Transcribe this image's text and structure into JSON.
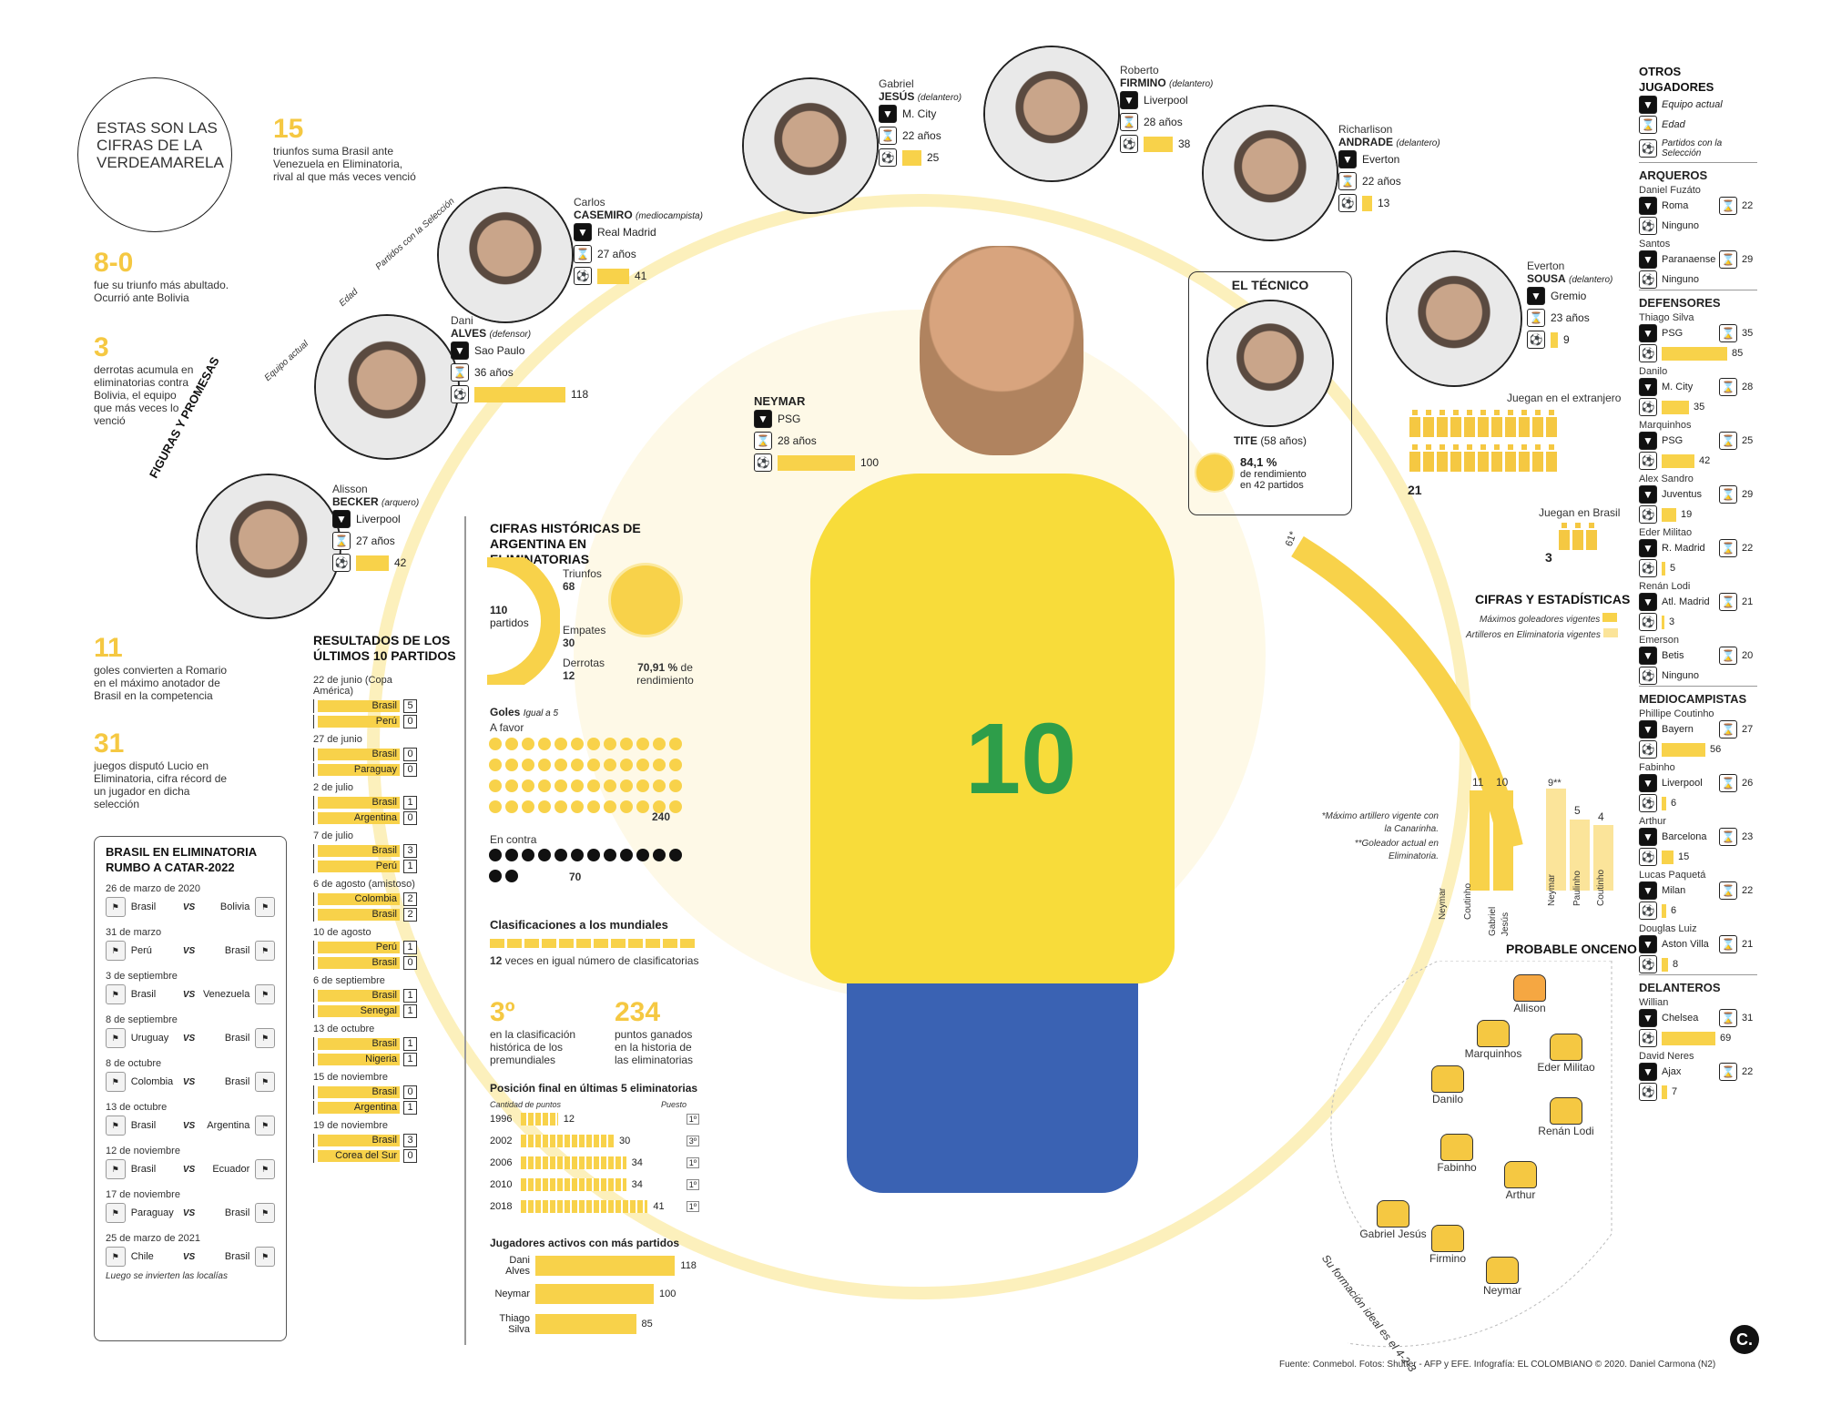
{
  "title": {
    "line1": "ESTAS SON LAS",
    "line2": "CIFRAS DE LA",
    "line3": "VERDEAMARELA"
  },
  "facts": [
    {
      "n": "15",
      "t": "triunfos suma Brasil ante Venezuela en Eliminatoria, rival al que más veces venció"
    },
    {
      "n": "8-0",
      "t": "fue su triunfo más abultado. Ocurrió ante Bolivia"
    },
    {
      "n": "3",
      "t": "derrotas acumula en eliminatorias contra Bolivia, el equipo que más veces lo venció"
    },
    {
      "n": "11",
      "t": "goles convierten a Romario en el máximo anotador de Brasil en la competencia"
    },
    {
      "n": "31",
      "t": "juegos disputó Lucio en Eliminatoria, cifra récord de un jugador en dicha selección"
    }
  ],
  "arc_labels": {
    "section": "FIGURAS Y PROMESAS",
    "team": "Equipo actual",
    "age": "Edad",
    "games": "Partidos con la Selección"
  },
  "players": [
    {
      "first": "Alisson",
      "last": "BECKER",
      "role": "(arquero)",
      "team": "Liverpool",
      "age": "27 años",
      "games": "42"
    },
    {
      "first": "Dani",
      "last": "ALVES",
      "role": "(defensor)",
      "team": "Sao Paulo",
      "age": "36 años",
      "games": "118"
    },
    {
      "first": "Carlos",
      "last": "CASEMIRO",
      "role": "(mediocampista)",
      "team": "Real Madrid",
      "age": "27 años",
      "games": "41"
    },
    {
      "first": "Gabriel",
      "last": "JESÚS",
      "role": "(delantero)",
      "team": "M. City",
      "age": "22 años",
      "games": "25"
    },
    {
      "first": "Roberto",
      "last": "FIRMINO",
      "role": "(delantero)",
      "team": "Liverpool",
      "age": "28 años",
      "games": "38"
    },
    {
      "first": "Richarlison",
      "last": "ANDRADE",
      "role": "(delantero)",
      "team": "Everton",
      "age": "22 años",
      "games": "13"
    },
    {
      "first": "Everton",
      "last": "SOUSA",
      "role": "(delantero)",
      "team": "Gremio",
      "age": "23 años",
      "games": "9"
    }
  ],
  "neymar": {
    "name": "NEYMAR",
    "team": "PSG",
    "age": "28 años",
    "games": "100"
  },
  "coach": {
    "title": "EL TÉCNICO",
    "name": "TITE",
    "age": "(58 años)",
    "pct": "84,1 %",
    "t1": "de rendimiento",
    "t2": "en 42 partidos"
  },
  "abroad": {
    "t1": "Juegan en el extranjero",
    "n1": "21",
    "t2": "Juegan en Brasil",
    "n2": "3"
  },
  "stats": {
    "title": "CIFRAS Y ESTADÍSTICAS",
    "leg1": "Máximos goleadores vigentes",
    "leg2": "Artilleros en Eliminatoria vigentes",
    "top1": "61*",
    "top2": "9**",
    "note1": "*Máximo artillero vigente con la Canarinha.",
    "note2": "**Goleador actual en Eliminatoria.",
    "names1": [
      "Neymar",
      "Coutinho",
      "Gabriel Jesús"
    ],
    "vals1": [
      "11",
      "10"
    ],
    "names2": [
      "Neymar",
      "Paulinho",
      "Coutinho"
    ],
    "vals2": [
      "5",
      "4"
    ]
  },
  "onceno": {
    "title": "PROBABLE ONCENO",
    "formation": "Su formación ideal es el 4-2-3",
    "players": [
      "Allison",
      "Marquinhos",
      "Eder Militao",
      "Danilo",
      "Renán Lodi",
      "Fabinho",
      "Arthur",
      "Gabriel Jesús",
      "Firmino",
      "Neymar"
    ]
  },
  "argentina": {
    "title": "CIFRAS HISTÓRICAS DE ARGENTINA EN ELIMINATORIAS",
    "partidos": "110",
    "partidos_l": "partidos",
    "tri_l": "Triunfos",
    "tri": "68",
    "emp_l": "Empates",
    "emp": "30",
    "der_l": "Derrotas",
    "der": "12",
    "pct": "70,91 %",
    "pct_l": "de",
    "pct_l2": "rendimiento",
    "goles": "Goles",
    "igual": "Igual a 5",
    "favor": "A favor",
    "favor_n": "240",
    "contra": "En contra",
    "contra_n": "70"
  },
  "clasif": {
    "title": "Clasificaciones a los mundiales",
    "n": "12",
    "t": "veces en igual número de clasificatorias"
  },
  "rank": [
    {
      "n": "3º",
      "t": "en la clasificación histórica de los premundiales"
    },
    {
      "n": "234",
      "t": "puntos ganados en la historia de las eliminatorias"
    }
  ],
  "pos": {
    "title": "Posición final en últimas 5 eliminatorias",
    "c1": "Cantidad de puntos",
    "c2": "Puesto",
    "rows": [
      {
        "y": "1996",
        "p": "12",
        "r": "1º"
      },
      {
        "y": "2002",
        "p": "30",
        "r": "3º"
      },
      {
        "y": "2006",
        "p": "34",
        "r": "1º"
      },
      {
        "y": "2010",
        "p": "34",
        "r": "1º"
      },
      {
        "y": "2018",
        "p": "41",
        "r": "1º"
      }
    ]
  },
  "active": {
    "title": "Jugadores activos con más partidos",
    "rows": [
      {
        "n": "Dani Alves",
        "v": "118"
      },
      {
        "n": "Neymar",
        "v": "100"
      },
      {
        "n": "Thiago Silva",
        "v": "85"
      }
    ]
  },
  "results": {
    "title": "RESULTADOS DE LOS ÚLTIMOS 10 PARTIDOS",
    "games": [
      {
        "d": "22 de junio (Copa América)",
        "a": "Brasil",
        "as": "5",
        "b": "Perú",
        "bs": "0"
      },
      {
        "d": "27 de junio",
        "a": "Brasil",
        "as": "0",
        "b": "Paraguay",
        "bs": "0"
      },
      {
        "d": "2 de julio",
        "a": "Brasil",
        "as": "1",
        "b": "Argentina",
        "bs": "0"
      },
      {
        "d": "7 de julio",
        "a": "Brasil",
        "as": "3",
        "b": "Perú",
        "bs": "1"
      },
      {
        "d": "6 de agosto (amistoso)",
        "a": "Colombia",
        "as": "2",
        "b": "Brasil",
        "bs": "2"
      },
      {
        "d": "10 de agosto",
        "a": "Perú",
        "as": "1",
        "b": "Brasil",
        "bs": "0"
      },
      {
        "d": "6 de septiembre",
        "a": "Brasil",
        "as": "1",
        "b": "Senegal",
        "bs": "1"
      },
      {
        "d": "13 de octubre",
        "a": "Brasil",
        "as": "1",
        "b": "Nigeria",
        "bs": "1"
      },
      {
        "d": "15 de noviembre",
        "a": "Brasil",
        "as": "0",
        "b": "Argentina",
        "bs": "1"
      },
      {
        "d": "19 de noviembre",
        "a": "Brasil",
        "as": "3",
        "b": "Corea del Sur",
        "bs": "0"
      }
    ]
  },
  "qatar": {
    "title": "BRASIL EN ELIMINATORIA RUMBO A CATAR-2022",
    "vs": "VS",
    "note": "Luego se invierten las localías",
    "games": [
      {
        "d": "26 de marzo de 2020",
        "a": "Brasil",
        "b": "Bolivia"
      },
      {
        "d": "31 de marzo",
        "a": "Perú",
        "b": "Brasil"
      },
      {
        "d": "3 de septiembre",
        "a": "Brasil",
        "b": "Venezuela"
      },
      {
        "d": "8 de septiembre",
        "a": "Uruguay",
        "b": "Brasil"
      },
      {
        "d": "8 de octubre",
        "a": "Colombia",
        "b": "Brasil"
      },
      {
        "d": "13 de octubre",
        "a": "Brasil",
        "b": "Argentina"
      },
      {
        "d": "12 de noviembre",
        "a": "Brasil",
        "b": "Ecuador"
      },
      {
        "d": "17 de noviembre",
        "a": "Paraguay",
        "b": "Brasil"
      },
      {
        "d": "25 de marzo de 2021",
        "a": "Chile",
        "b": "Brasil"
      }
    ]
  },
  "others": {
    "title": "OTROS JUGADORES",
    "l1": "Equipo actual",
    "l2": "Edad",
    "l3": "Partidos con la Selección",
    "groups": [
      {
        "g": "Arqueros",
        "p": [
          {
            "n": "Daniel Fuzáto",
            "t": "Roma",
            "a": "22",
            "v": "Ninguno"
          },
          {
            "n": "Santos",
            "t": "Paranaense",
            "a": "29",
            "v": "Ninguno"
          }
        ]
      },
      {
        "g": "Defensores",
        "p": [
          {
            "n": "Thiago Silva",
            "t": "PSG",
            "a": "35",
            "v": "85"
          },
          {
            "n": "Danilo",
            "t": "M. City",
            "a": "28",
            "v": "35"
          },
          {
            "n": "Marquinhos",
            "t": "PSG",
            "a": "25",
            "v": "42"
          },
          {
            "n": "Alex Sandro",
            "t": "Juventus",
            "a": "29",
            "v": "19"
          },
          {
            "n": "Eder Militao",
            "t": "R. Madrid",
            "a": "22",
            "v": "5"
          },
          {
            "n": "Renán Lodi",
            "t": "Atl. Madrid",
            "a": "21",
            "v": "3"
          },
          {
            "n": "Emerson",
            "t": "Betis",
            "a": "20",
            "v": "Ninguno"
          }
        ]
      },
      {
        "g": "Mediocampistas",
        "p": [
          {
            "n": "Phillipe Coutinho",
            "t": "Bayern",
            "a": "27",
            "v": "56"
          },
          {
            "n": "Fabinho",
            "t": "Liverpool",
            "a": "26",
            "v": "6"
          },
          {
            "n": "Arthur",
            "t": "Barcelona",
            "a": "23",
            "v": "15"
          },
          {
            "n": "Lucas Paquetá",
            "t": "Milan",
            "a": "22",
            "v": "6"
          },
          {
            "n": "Douglas Luiz",
            "t": "Aston Villa",
            "a": "21",
            "v": "8"
          }
        ]
      },
      {
        "g": "Delanteros",
        "p": [
          {
            "n": "Willian",
            "t": "Chelsea",
            "a": "31",
            "v": "69"
          },
          {
            "n": "David Neres",
            "t": "Ajax",
            "a": "22",
            "v": "7"
          }
        ]
      }
    ]
  },
  "credit": "Fuente: Conmebol. Fotos: Shutter - AFP y EFE. Infografía: EL COLOMBIANO © 2020. Daniel Carmona (N2)",
  "colors": {
    "accent": "#f8d24a",
    "dark": "#222222"
  }
}
